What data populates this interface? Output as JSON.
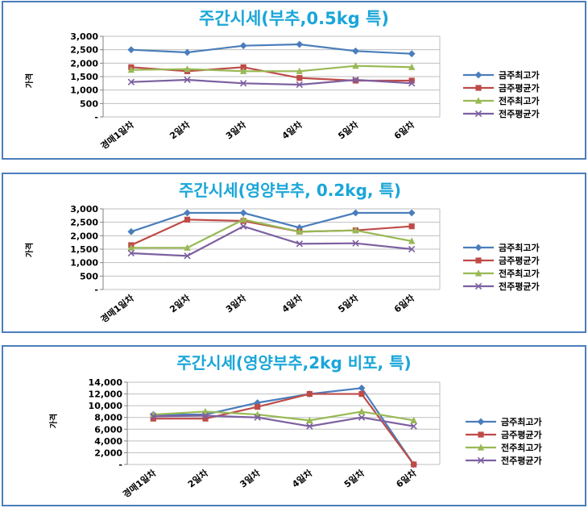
{
  "colors": {
    "border": "#4a7ebb",
    "title": "#1aa6d8",
    "series": [
      "#4a7ebb",
      "#be4b48",
      "#98b954",
      "#7d60a0"
    ],
    "grid": "#bfbfbf"
  },
  "chart_data": [
    {
      "type": "line",
      "title": "주간시세(부추,0.5kg 특)",
      "ylabel": "가격",
      "categories": [
        "경매1일차",
        "2일차",
        "3일차",
        "4일차",
        "5일차",
        "6일차"
      ],
      "yticks": [
        "3,000",
        "2,500",
        "2,000",
        "1,500",
        "1,000",
        "500",
        "-"
      ],
      "ylim": [
        0,
        3000
      ],
      "grid": true,
      "legend_position": "right",
      "series": [
        {
          "name": "금주최고가",
          "marker": "diamond",
          "values": [
            2500,
            2400,
            2650,
            2700,
            2450,
            2350
          ]
        },
        {
          "name": "금주평균가",
          "marker": "square",
          "values": [
            1850,
            1700,
            1850,
            1450,
            1350,
            1350
          ]
        },
        {
          "name": "전주최고가",
          "marker": "triangle",
          "values": [
            1750,
            1780,
            1700,
            1700,
            1900,
            1850
          ]
        },
        {
          "name": "전주평균가",
          "marker": "x",
          "values": [
            1300,
            1380,
            1250,
            1200,
            1380,
            1250
          ]
        }
      ]
    },
    {
      "type": "line",
      "title": "주간시세(영양부추, 0.2kg, 특)",
      "ylabel": "가격",
      "categories": [
        "경매1일차",
        "2일차",
        "3일차",
        "4일차",
        "5일차",
        "6일차"
      ],
      "yticks": [
        "3,000",
        "2,500",
        "2,000",
        "1,500",
        "1,000",
        "500",
        "-"
      ],
      "ylim": [
        0,
        3000
      ],
      "grid": true,
      "legend_position": "right",
      "series": [
        {
          "name": "금주최고가",
          "marker": "diamond",
          "values": [
            2150,
            2850,
            2850,
            2300,
            2850,
            2850
          ]
        },
        {
          "name": "금주평균가",
          "marker": "square",
          "values": [
            1650,
            2600,
            2550,
            2150,
            2200,
            2350
          ]
        },
        {
          "name": "전주최고가",
          "marker": "triangle",
          "values": [
            1550,
            1550,
            2600,
            2150,
            2200,
            1800
          ]
        },
        {
          "name": "전주평균가",
          "marker": "x",
          "values": [
            1350,
            1250,
            2350,
            1700,
            1720,
            1500
          ]
        }
      ]
    },
    {
      "type": "line",
      "title": "주간시세(영양부추,2kg 비포, 특)",
      "ylabel": "가격",
      "categories": [
        "경매1일차",
        "2일차",
        "3일차",
        "4일차",
        "5일차",
        "6일차"
      ],
      "yticks": [
        "14,000",
        "12,000",
        "10,000",
        "8,000",
        "6,000",
        "4,000",
        "2,000",
        "-"
      ],
      "ylim": [
        0,
        14000
      ],
      "grid": true,
      "legend_position": "right",
      "series": [
        {
          "name": "금주최고가",
          "marker": "diamond",
          "values": [
            8500,
            8500,
            10500,
            12000,
            13000,
            0
          ]
        },
        {
          "name": "금주평균가",
          "marker": "square",
          "values": [
            7800,
            7800,
            9800,
            12000,
            12000,
            0
          ]
        },
        {
          "name": "전주최고가",
          "marker": "triangle",
          "values": [
            8500,
            9000,
            8500,
            7500,
            9000,
            7500
          ]
        },
        {
          "name": "전주평균가",
          "marker": "x",
          "values": [
            8200,
            8300,
            8000,
            6500,
            8000,
            6500
          ]
        }
      ]
    }
  ]
}
